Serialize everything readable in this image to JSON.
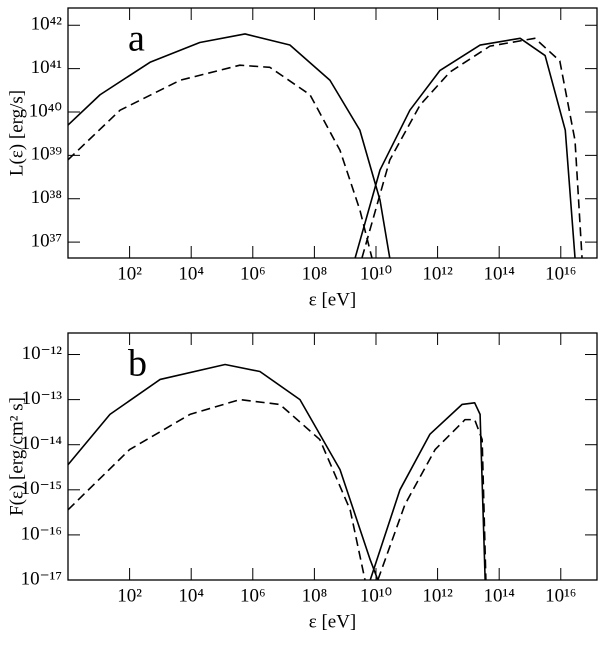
{
  "chart_data": [
    {
      "type": "line",
      "panel_label": "a",
      "xlabel": "ε [eV]",
      "ylabel": "L(ε) [erg/s]",
      "xscale": "log",
      "yscale": "log",
      "xlim": [
        1,
        1.5e+17
      ],
      "ylim": [
        4.3e+36,
        2.5e+42
      ],
      "xticks": [
        {
          "value": 100.0,
          "label": "10²"
        },
        {
          "value": 10000.0,
          "label": "10⁴"
        },
        {
          "value": 1000000.0,
          "label": "10⁶"
        },
        {
          "value": 100000000.0,
          "label": "10⁸"
        },
        {
          "value": 10000000000.0,
          "label": "10¹⁰"
        },
        {
          "value": 1000000000000.0,
          "label": "10¹²"
        },
        {
          "value": 100000000000000.0,
          "label": "10¹⁴"
        },
        {
          "value": 1e+16,
          "label": "10¹⁶"
        }
      ],
      "yticks": [
        {
          "value": 1e+37,
          "label": "10³⁷"
        },
        {
          "value": 1e+38,
          "label": "10³⁸"
        },
        {
          "value": 1e+39,
          "label": "10³⁹"
        },
        {
          "value": 1e+40,
          "label": "10⁴⁰"
        },
        {
          "value": 1e+41,
          "label": "10⁴¹"
        },
        {
          "value": 1e+42,
          "label": "10⁴²"
        }
      ],
      "series": [
        {
          "color": "#000000",
          "style": "solid",
          "x": [
            1,
            11,
            460,
            19000.0,
            560000.0,
            16000000.0,
            320000000.0,
            3000000000.0,
            13500000000.0,
            28000000000.0
          ],
          "values": [
            5e+39,
            2.5e+40,
            1.4e+41,
            4e+41,
            6.3e+41,
            3.5e+41,
            5.4e+40,
            3.8e+39,
            9.3e+37,
            4.3e+36
          ]
        },
        {
          "color": "#000000",
          "style": "dashed",
          "x": [
            1,
            49,
            4400.0,
            380000.0,
            3600000.0,
            72000000.0,
            680000000.0,
            3000000000.0,
            7400000000.0
          ],
          "values": [
            7.9e+38,
            1.1e+40,
            5.4e+40,
            1.2e+41,
            1.07e+41,
            2.5e+40,
            1.3e+39,
            5.5e+37,
            4.3e+36
          ]
        },
        {
          "color": "#000000",
          "style": "solid",
          "x": [
            2100000000.0,
            13500000000.0,
            126000000000.0,
            1200000000000.0,
            24000000000000.0,
            480000000000000.0,
            3100000000000000.0,
            1.4e+16,
            2.9e+16
          ],
          "values": [
            4.3e+36,
            4.6e+38,
            1.1e+40,
            9.1e+40,
            3.5e+41,
            5e+41,
            2e+41,
            3.8e+39,
            4.3e+36
          ]
        },
        {
          "color": "#000000",
          "style": "dashed",
          "x": [
            3500000000.0,
            28000000000.0,
            270000000000.0,
            2500000000000.0,
            50000000000000.0,
            1450000000000000.0,
            9300000000000000.0,
            2.9e+16,
            4.9e+16
          ],
          "values": [
            4.3e+36,
            7.8e+38,
            1.45e+40,
            8.3e+40,
            3.3e+41,
            5e+41,
            1.5e+41,
            2.2e+39,
            4.3e+36
          ]
        }
      ]
    },
    {
      "type": "line",
      "panel_label": "b",
      "xlabel": "ε [eV]",
      "ylabel": "F(ε) [erg/cm² s]",
      "xscale": "log",
      "yscale": "log",
      "xlim": [
        1,
        1.5e+17
      ],
      "ylim": [
        1e-17,
        3e-12
      ],
      "xticks": [
        {
          "value": 100.0,
          "label": "10²"
        },
        {
          "value": 10000.0,
          "label": "10⁴"
        },
        {
          "value": 1000000.0,
          "label": "10⁶"
        },
        {
          "value": 100000000.0,
          "label": "10⁸"
        },
        {
          "value": 10000000000.0,
          "label": "10¹⁰"
        },
        {
          "value": 1000000000000.0,
          "label": "10¹²"
        },
        {
          "value": 100000000000000.0,
          "label": "10¹⁴"
        },
        {
          "value": 1e+16,
          "label": "10¹⁶"
        }
      ],
      "yticks": [
        {
          "value": 1e-17,
          "label": "10⁻¹⁷"
        },
        {
          "value": 1e-16,
          "label": "10⁻¹⁶"
        },
        {
          "value": 1e-15,
          "label": "10⁻¹⁵"
        },
        {
          "value": 1e-14,
          "label": "10⁻¹⁴"
        },
        {
          "value": 1e-13,
          "label": "10⁻¹³"
        },
        {
          "value": 1e-12,
          "label": "10⁻¹²"
        }
      ],
      "series": [
        {
          "color": "#000000",
          "style": "solid",
          "x": [
            1,
            23,
            980,
            126000.0,
            1700000.0,
            34000000.0,
            680000000.0,
            6500000000.0,
            11500000000.0
          ],
          "values": [
            3.6e-15,
            4.7e-14,
            2.8e-13,
            6e-13,
            4.2e-13,
            1e-13,
            2.8e-15,
            2.8e-17,
            1e-17
          ]
        },
        {
          "color": "#000000",
          "style": "dashed",
          "x": [
            1,
            100,
            9100.0,
            380000.0,
            7600000.0,
            150000000.0,
            1450000000.0,
            4400000000.0
          ],
          "values": [
            3.6e-16,
            7.8e-15,
            4.7e-14,
            1e-13,
            7.8e-14,
            1.3e-14,
            3.6e-16,
            1e-17
          ]
        },
        {
          "color": "#000000",
          "style": "solid",
          "x": [
            6500000000.0,
            60000000000.0,
            560000000000.0,
            6200000000000.0,
            16000000000000.0,
            24000000000000.0,
            35000000000000.0
          ],
          "values": [
            1e-17,
            1e-15,
            1.7e-14,
            7.8e-14,
            8.5e-14,
            4.7e-14,
            1e-17
          ]
        },
        {
          "color": "#000000",
          "style": "dashed",
          "x": [
            11500000000.0,
            87000000000.0,
            830000000000.0,
            7800000000000.0,
            16000000000000.0,
            28000000000000.0,
            37000000000000.0
          ],
          "values": [
            1e-17,
            4.7e-16,
            7.8e-15,
            3.6e-14,
            3.6e-14,
            1.3e-14,
            1e-17
          ]
        }
      ]
    }
  ]
}
